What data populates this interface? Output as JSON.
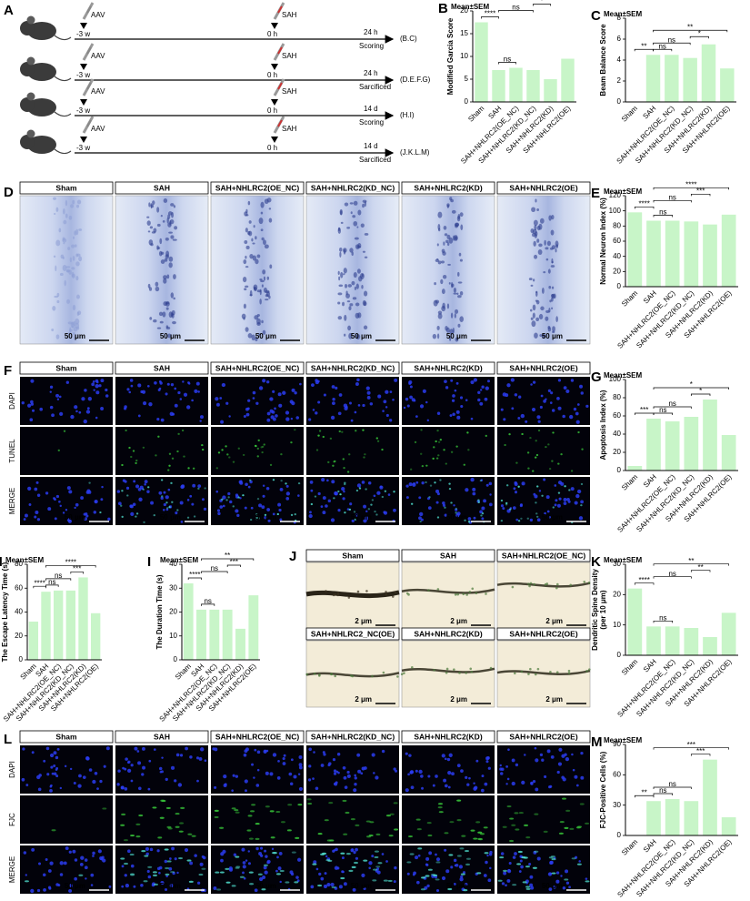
{
  "figure": {
    "panel_A": {
      "label": "A",
      "rows": [
        {
          "aav": "AAV",
          "aav_time": "-3 w",
          "sah": "SAH",
          "sah_time": "0 h",
          "end_time": "24 h",
          "action": "Scoring",
          "panels": "(B.C)"
        },
        {
          "aav": "AAV",
          "aav_time": "-3 w",
          "sah": "SAH",
          "sah_time": "0 h",
          "end_time": "24 h",
          "action": "Sarcificed",
          "panels": "(D.E.F.G)"
        },
        {
          "aav": "AAV",
          "aav_time": "-3 w",
          "sah": "SAH",
          "sah_time": "0 h",
          "end_time": "14 d",
          "action": "Scoring",
          "panels": "(H.I)"
        },
        {
          "aav": "AAV",
          "aav_time": "-3 w",
          "sah": "SAH",
          "sah_time": "0 h",
          "end_time": "14 d",
          "action": "Sarcificed",
          "panels": "(J.K.L.M)"
        }
      ]
    },
    "panel_D": {
      "label": "D",
      "columns": [
        "Sham",
        "SAH",
        "SAH+NHLRC2(OE_NC)",
        "SAH+NHLRC2(KD_NC)",
        "SAH+NHLRC2(KD)",
        "SAH+NHLRC2(OE)"
      ],
      "scale_bar": "50 μm"
    },
    "panel_F": {
      "label": "F",
      "columns": [
        "Sham",
        "SAH",
        "SAH+NHLRC2(OE_NC)",
        "SAH+NHLRC2(KD_NC)",
        "SAH+NHLRC2(KD)",
        "SAH+NHLRC2(OE)"
      ],
      "rows": [
        "DAPI",
        "TUNEL",
        "MERGE"
      ],
      "scale_bar": "50 μm"
    },
    "panel_J": {
      "label": "J",
      "images": [
        "Sham",
        "SAH",
        "SAH+NHLRC2(OE_NC)",
        "SAH+NHLRC2_NC(OE)",
        "SAH+NHLRC2(KD)",
        "SAH+NHLRC2(OE)"
      ],
      "scale_bar": "2 μm"
    },
    "panel_L": {
      "label": "L",
      "columns": [
        "Sham",
        "SAH",
        "SAH+NHLRC2(OE_NC)",
        "SAH+NHLRC2(KD_NC)",
        "SAH+NHLRC2(KD)",
        "SAH+NHLRC2(OE)"
      ],
      "rows": [
        "DAPI",
        "FJC",
        "MERGE"
      ],
      "scale_bar": "50 μm"
    }
  },
  "chart_data": [
    {
      "type": "bar",
      "panel": "B",
      "note": "Mean±SEM",
      "y_label": "Modified Garcia Score",
      "categories": [
        "Sham",
        "SAH",
        "SAH+NHLRC2(OE_NC)",
        "SAH+NHLRC2(KD_NC)",
        "SAH+NHLRC2(KD)",
        "SAH+NHLRC2(OE)"
      ],
      "values": [
        17.5,
        7,
        7.5,
        7,
        5,
        9.5
      ],
      "color": "#c8f5c8",
      "ylim": [
        0,
        20
      ],
      "yticks": [
        0,
        5,
        10,
        15,
        20
      ],
      "significance": [
        "****",
        "ns",
        "ns",
        "*",
        "**"
      ]
    },
    {
      "type": "bar",
      "panel": "C",
      "note": "Mean±SEM",
      "y_label": "Beam Balance Score",
      "categories": [
        "Sham",
        "SAH",
        "SAH+NHLRC2(OE_NC)",
        "SAH+NHLRC2(KD_NC)",
        "SAH+NHLRC2(KD)",
        "SAH+NHLRC2(OE)"
      ],
      "values": [
        0,
        4.5,
        4.5,
        4.2,
        5.5,
        3.2
      ],
      "color": "#c8f5c8",
      "ylim": [
        0,
        8
      ],
      "yticks": [
        0,
        2,
        4,
        6,
        8
      ],
      "significance": [
        "**",
        "ns",
        "ns",
        "*",
        "**"
      ]
    },
    {
      "type": "bar",
      "panel": "E",
      "note": "Mean±SEM",
      "y_label": "Normal Neuron Index (%)",
      "categories": [
        "Sham",
        "SAH",
        "SAH+NHLRC2(OE_NC)",
        "SAH+NHLRC2(KD_NC)",
        "SAH+NHLRC2(KD)",
        "SAH+NHLRC2(OE)"
      ],
      "values": [
        98,
        87,
        87,
        86,
        82,
        95
      ],
      "color": "#c8f5c8",
      "ylim": [
        0,
        120
      ],
      "yticks": [
        0,
        20,
        40,
        60,
        80,
        100,
        120
      ],
      "significance": [
        "****",
        "ns",
        "ns",
        "***",
        "****"
      ]
    },
    {
      "type": "bar",
      "panel": "G",
      "note": "Mean±SEM",
      "y_label": "Apoptosis Index (%)",
      "categories": [
        "Sham",
        "SAH",
        "SAH+NHLRC2(OE_NC)",
        "SAH+NHLRC2(KD_NC)",
        "SAH+NHLRC2(KD)",
        "SAH+NHLRC2(OE)"
      ],
      "values": [
        5,
        57,
        54,
        59,
        78,
        39
      ],
      "color": "#c8f5c8",
      "ylim": [
        0,
        100
      ],
      "yticks": [
        0,
        20,
        40,
        60,
        80,
        100
      ],
      "significance": [
        "***",
        "ns",
        "ns",
        "*",
        "*"
      ]
    },
    {
      "type": "bar",
      "panel": "H",
      "note": "Mean±SEM",
      "y_label": "The Escape Latency Time (s)",
      "categories": [
        "Sham",
        "SAH",
        "SAH+NHLRC2(OE_NC)",
        "SAH+NHLRC2(KD_NC)",
        "SAH+NHLRC2(KD)",
        "SAH+NHLRC2(OE)"
      ],
      "values": [
        32,
        57,
        58,
        58,
        69,
        39
      ],
      "color": "#c8f5c8",
      "ylim": [
        0,
        80
      ],
      "yticks": [
        0,
        20,
        40,
        60,
        80
      ],
      "significance": [
        "****",
        "ns",
        "ns",
        "***",
        "****"
      ]
    },
    {
      "type": "bar",
      "panel": "I",
      "note": "Mean±SEM",
      "y_label": "The Duration Time (s)",
      "categories": [
        "Sham",
        "SAH",
        "SAH+NHLRC2(OE_NC)",
        "SAH+NHLRC2(KD_NC)",
        "SAH+NHLRC2(KD)",
        "SAH+NHLRC2(OE)"
      ],
      "values": [
        32,
        21,
        21,
        21,
        13,
        27
      ],
      "color": "#c8f5c8",
      "ylim": [
        0,
        40
      ],
      "yticks": [
        0,
        10,
        20,
        30,
        40
      ],
      "significance": [
        "****",
        "ns",
        "ns",
        "***",
        "**"
      ]
    },
    {
      "type": "bar",
      "panel": "K",
      "note": "Mean±SEM",
      "y_label": [
        "Dendritic Spine Density",
        "(per 10 μm)"
      ],
      "categories": [
        "Sham",
        "SAH",
        "SAH+NHLRC2(OE_NC)",
        "SAH+NHLRC2(KD_NC)",
        "SAH+NHLRC2(KD)",
        "SAH+NHLRC2(OE)"
      ],
      "values": [
        22,
        9.5,
        9.5,
        9,
        6,
        14
      ],
      "color": "#c8f5c8",
      "ylim": [
        0,
        30
      ],
      "yticks": [
        0,
        10,
        20,
        30
      ],
      "significance": [
        "****",
        "ns",
        "ns",
        "**",
        "**"
      ]
    },
    {
      "type": "bar",
      "panel": "M",
      "note": "Mean±SEM",
      "y_label": "FJC-Positive Cells (%)",
      "categories": [
        "Sham",
        "SAH",
        "SAH+NHLRC2(OE_NC)",
        "SAH+NHLRC2(KD_NC)",
        "SAH+NHLRC2(KD)",
        "SAH+NHLRC2(OE)"
      ],
      "values": [
        0,
        34,
        36,
        34,
        75,
        18
      ],
      "color": "#c8f5c8",
      "ylim": [
        0,
        90
      ],
      "yticks": [
        0,
        30,
        60,
        90
      ],
      "significance": [
        "**",
        "ns",
        "ns",
        "***",
        "***"
      ]
    }
  ]
}
